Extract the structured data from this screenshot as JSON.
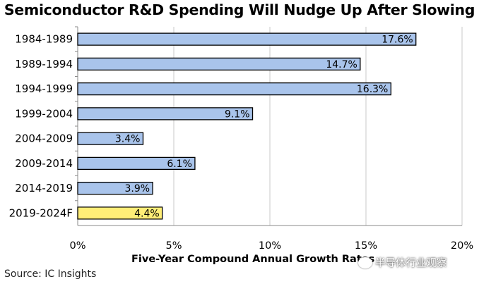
{
  "chart_data": {
    "type": "bar",
    "orientation": "horizontal",
    "title": "Semiconductor R&D Spending Will Nudge Up After Slowing",
    "xlabel": "Five-Year Compound Annual Growth Rates",
    "ylabel": "",
    "categories": [
      "1984-1989",
      "1989-1994",
      "1994-1999",
      "1999-2004",
      "2004-2009",
      "2009-2014",
      "2014-2019",
      "2019-2024F"
    ],
    "values": [
      17.6,
      14.7,
      16.3,
      9.1,
      3.4,
      6.1,
      3.9,
      4.4
    ],
    "data_labels": [
      "17.6%",
      "14.7%",
      "16.3%",
      "9.1%",
      "3.4%",
      "6.1%",
      "3.9%",
      "4.4%"
    ],
    "xlim": [
      0,
      20
    ],
    "xticks": [
      0,
      5,
      10,
      15,
      20
    ],
    "xtick_labels": [
      "0%",
      "5%",
      "10%",
      "15%",
      "20%"
    ],
    "grid": "vertical",
    "bar_color": "#a9c4eb",
    "highlight_color": "#ffee77",
    "highlight_index": 7,
    "source": "Source: IC Insights"
  },
  "watermark": {
    "text": "半导体行业观察",
    "icon": "wechat-icon"
  }
}
